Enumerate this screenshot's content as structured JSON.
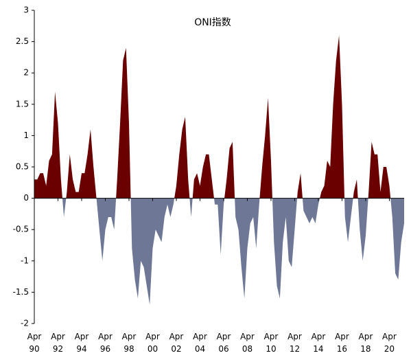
{
  "chart_data": {
    "type": "area",
    "title": "ONI指数",
    "categories": [
      "Apr 90",
      null,
      null,
      null,
      null,
      null,
      null,
      null,
      "Apr 92",
      null,
      null,
      null,
      null,
      null,
      null,
      null,
      "Apr 94",
      null,
      null,
      null,
      null,
      null,
      null,
      null,
      "Apr 96",
      null,
      null,
      null,
      null,
      null,
      null,
      null,
      "Apr 98",
      null,
      null,
      null,
      null,
      null,
      null,
      null,
      "Apr 00",
      null,
      null,
      null,
      null,
      null,
      null,
      null,
      "Apr 02",
      null,
      null,
      null,
      null,
      null,
      null,
      null,
      "Apr 04",
      null,
      null,
      null,
      null,
      null,
      null,
      null,
      "Apr 06",
      null,
      null,
      null,
      null,
      null,
      null,
      null,
      "Apr 08",
      null,
      null,
      null,
      null,
      null,
      null,
      null,
      "Apr 10",
      null,
      null,
      null,
      null,
      null,
      null,
      null,
      "Apr 12",
      null,
      null,
      null,
      null,
      null,
      null,
      null,
      "Apr 14",
      null,
      null,
      null,
      null,
      null,
      null,
      null,
      "Apr 16",
      null,
      null,
      null,
      null,
      null,
      null,
      null,
      "Apr 18",
      null,
      null,
      null,
      null,
      null,
      null,
      null,
      "Apr 20",
      null,
      null,
      null,
      null,
      null
    ],
    "values": [
      0.3,
      0.3,
      0.4,
      0.4,
      0.2,
      0.6,
      0.7,
      1.7,
      1.2,
      0.3,
      -0.3,
      0.1,
      0.7,
      0.3,
      0.1,
      0.1,
      0.4,
      0.4,
      0.7,
      1.1,
      0.5,
      0.0,
      -0.5,
      -1.0,
      -0.5,
      -0.3,
      -0.3,
      -0.5,
      0.3,
      1.2,
      2.2,
      2.4,
      1.2,
      -0.8,
      -1.3,
      -1.6,
      -1.0,
      -1.1,
      -1.4,
      -1.7,
      -0.8,
      -0.5,
      -0.6,
      -0.7,
      -0.3,
      -0.1,
      -0.3,
      -0.1,
      0.2,
      0.7,
      1.1,
      1.3,
      0.3,
      -0.3,
      0.3,
      0.4,
      0.2,
      0.5,
      0.7,
      0.7,
      0.3,
      -0.1,
      -0.1,
      -0.9,
      -0.1,
      0.3,
      0.8,
      0.9,
      -0.3,
      -0.5,
      -1.1,
      -1.6,
      -0.8,
      -0.4,
      -0.3,
      -0.8,
      -0.1,
      0.5,
      1.0,
      1.6,
      0.6,
      -0.7,
      -1.4,
      -1.6,
      -0.7,
      -0.3,
      -1.0,
      -1.1,
      -0.5,
      0.1,
      0.4,
      -0.2,
      -0.3,
      -0.4,
      -0.3,
      -0.4,
      -0.1,
      0.1,
      0.2,
      0.6,
      0.5,
      1.5,
      2.2,
      2.6,
      1.5,
      -0.3,
      -0.7,
      -0.3,
      0.1,
      0.3,
      -0.5,
      -1.0,
      -0.6,
      0.1,
      0.9,
      0.7,
      0.7,
      0.1,
      0.5,
      0.5,
      0.2,
      -0.3,
      -1.2,
      -1.3,
      -0.7,
      -0.4
    ],
    "color_positive": "#6b0000",
    "color_negative": "#6e7896",
    "ylim": [
      -2,
      3
    ],
    "yticks": [
      -2,
      -1.5,
      -1,
      -0.5,
      0,
      0.5,
      1,
      1.5,
      2,
      2.5,
      3
    ]
  }
}
